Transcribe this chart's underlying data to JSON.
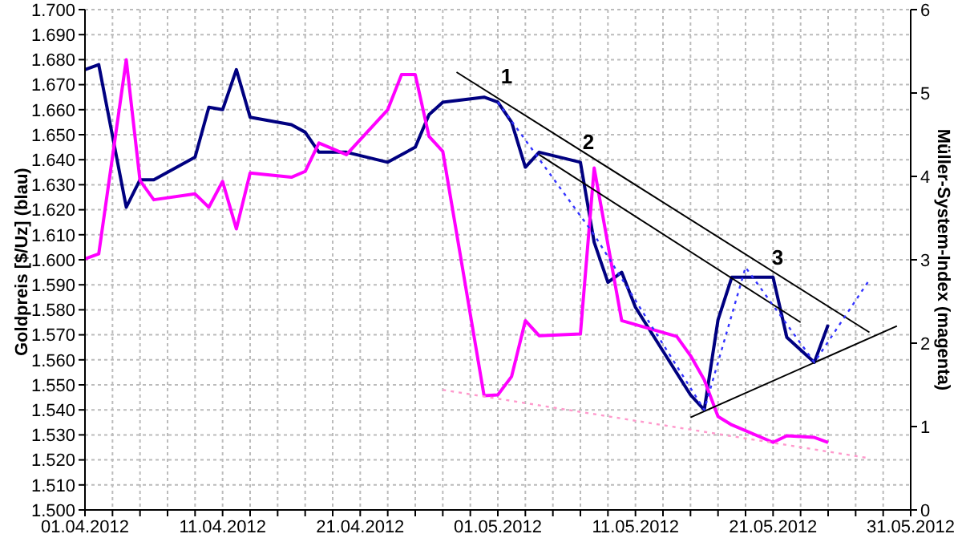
{
  "chart_data": {
    "type": "line",
    "ylabel": "Goldpreis [$/Uz] (blau)",
    "y2label": "Müller-System-Index (magenta)",
    "xlim": [
      "2012-04-01",
      "2012-05-31"
    ],
    "xticks": [
      {
        "value": "2012-04-01",
        "label": "01.04.2012"
      },
      {
        "value": "2012-04-03",
        "label": null
      },
      {
        "value": "2012-04-05",
        "label": null
      },
      {
        "value": "2012-04-07",
        "label": null
      },
      {
        "value": "2012-04-09",
        "label": null
      },
      {
        "value": "2012-04-11",
        "label": "11.04.2012"
      },
      {
        "value": "2012-04-13",
        "label": null
      },
      {
        "value": "2012-04-15",
        "label": null
      },
      {
        "value": "2012-04-17",
        "label": null
      },
      {
        "value": "2012-04-19",
        "label": null
      },
      {
        "value": "2012-04-21",
        "label": "21.04.2012"
      },
      {
        "value": "2012-04-23",
        "label": null
      },
      {
        "value": "2012-04-25",
        "label": null
      },
      {
        "value": "2012-04-27",
        "label": null
      },
      {
        "value": "2012-04-29",
        "label": null
      },
      {
        "value": "2012-05-01",
        "label": "01.05.2012"
      },
      {
        "value": "2012-05-03",
        "label": null
      },
      {
        "value": "2012-05-05",
        "label": null
      },
      {
        "value": "2012-05-07",
        "label": null
      },
      {
        "value": "2012-05-09",
        "label": null
      },
      {
        "value": "2012-05-11",
        "label": "11.05.2012"
      },
      {
        "value": "2012-05-13",
        "label": null
      },
      {
        "value": "2012-05-15",
        "label": null
      },
      {
        "value": "2012-05-17",
        "label": null
      },
      {
        "value": "2012-05-19",
        "label": null
      },
      {
        "value": "2012-05-21",
        "label": "21.05.2012"
      },
      {
        "value": "2012-05-23",
        "label": null
      },
      {
        "value": "2012-05-25",
        "label": null
      },
      {
        "value": "2012-05-27",
        "label": null
      },
      {
        "value": "2012-05-29",
        "label": null
      },
      {
        "value": "2012-05-31",
        "label": "31.05.2012"
      }
    ],
    "ylim": [
      1.5,
      1.7
    ],
    "yticks": [
      {
        "value": 1.5,
        "label": "1.500"
      },
      {
        "value": 1.51,
        "label": "1.510"
      },
      {
        "value": 1.52,
        "label": "1.520"
      },
      {
        "value": 1.53,
        "label": "1.530"
      },
      {
        "value": 1.54,
        "label": "1.540"
      },
      {
        "value": 1.55,
        "label": "1.550"
      },
      {
        "value": 1.56,
        "label": "1.560"
      },
      {
        "value": 1.57,
        "label": "1.570"
      },
      {
        "value": 1.58,
        "label": "1.580"
      },
      {
        "value": 1.59,
        "label": "1.590"
      },
      {
        "value": 1.6,
        "label": "1.600"
      },
      {
        "value": 1.61,
        "label": "1.610"
      },
      {
        "value": 1.62,
        "label": "1.620"
      },
      {
        "value": 1.63,
        "label": "1.630"
      },
      {
        "value": 1.64,
        "label": "1.640"
      },
      {
        "value": 1.65,
        "label": "1.650"
      },
      {
        "value": 1.66,
        "label": "1.660"
      },
      {
        "value": 1.67,
        "label": "1.670"
      },
      {
        "value": 1.68,
        "label": "1.680"
      },
      {
        "value": 1.69,
        "label": "1.690"
      },
      {
        "value": 1.7,
        "label": "1.700"
      }
    ],
    "y2lim": [
      0,
      6
    ],
    "y2ticks": [
      0,
      1,
      2,
      3,
      4,
      5,
      6
    ],
    "grid": true,
    "marker": "none",
    "series": [
      {
        "color": "#000080",
        "x": [
          "2012-04-01",
          "2012-04-02",
          "2012-04-04",
          "2012-04-05",
          "2012-04-06",
          "2012-04-09",
          "2012-04-10",
          "2012-04-11",
          "2012-04-12",
          "2012-04-13",
          "2012-04-16",
          "2012-04-17",
          "2012-04-18",
          "2012-04-19",
          "2012-04-20",
          "2012-04-23",
          "2012-04-25",
          "2012-04-26",
          "2012-04-27",
          "2012-04-30",
          "2012-05-01",
          "2012-05-02",
          "2012-05-03",
          "2012-05-04",
          "2012-05-07",
          "2012-05-08",
          "2012-05-09",
          "2012-05-10",
          "2012-05-11",
          "2012-05-15",
          "2012-05-16",
          "2012-05-17",
          "2012-05-18",
          "2012-05-21",
          "2012-05-22",
          "2012-05-24",
          "2012-05-25"
        ],
        "values": [
          1.676,
          1.678,
          1.621,
          1.632,
          1.632,
          1.641,
          1.661,
          1.66,
          1.676,
          1.657,
          1.654,
          1.651,
          1.643,
          1.643,
          1.643,
          1.639,
          1.645,
          1.658,
          1.663,
          1.665,
          1.663,
          1.655,
          1.637,
          1.643,
          1.639,
          1.607,
          1.591,
          1.595,
          1.581,
          1.546,
          1.54,
          1.576,
          1.593,
          1.593,
          1.569,
          1.559,
          1.574
        ]
      },
      {
        "color": "#ff00ff",
        "axis": "y2",
        "x": [
          "2012-04-01",
          "2012-04-02",
          "2012-04-04",
          "2012-04-05",
          "2012-04-06",
          "2012-04-09",
          "2012-04-10",
          "2012-04-11",
          "2012-04-12",
          "2012-04-13",
          "2012-04-16",
          "2012-04-17",
          "2012-04-18",
          "2012-04-20",
          "2012-04-23",
          "2012-04-24",
          "2012-04-25",
          "2012-04-26",
          "2012-04-27",
          "2012-04-30",
          "2012-05-01",
          "2012-05-02",
          "2012-05-03",
          "2012-05-04",
          "2012-05-07",
          "2012-05-08",
          "2012-05-10",
          "2012-05-14",
          "2012-05-15",
          "2012-05-16",
          "2012-05-17",
          "2012-05-18",
          "2012-05-21",
          "2012-05-22",
          "2012-05-24",
          "2012-05-25"
        ],
        "values": [
          3.01,
          3.07,
          5.4,
          3.95,
          3.72,
          3.79,
          3.63,
          3.94,
          3.37,
          4.04,
          3.99,
          4.06,
          4.4,
          4.26,
          4.8,
          5.22,
          5.22,
          4.48,
          4.3,
          1.37,
          1.38,
          1.6,
          2.27,
          2.09,
          2.11,
          4.1,
          2.27,
          2.08,
          1.85,
          1.56,
          1.12,
          1.02,
          0.81,
          0.89,
          0.87,
          0.81
        ]
      },
      {
        "color": "#000000",
        "x": [
          "2012-04-28",
          "2012-05-28"
        ],
        "values": [
          1.675,
          1.571
        ]
      },
      {
        "color": "#000000",
        "x": [
          "2012-05-04",
          "2012-05-23"
        ],
        "values": [
          1.642,
          1.575
        ]
      },
      {
        "color": "#000000",
        "x": [
          "2012-05-15",
          "2012-05-30"
        ],
        "values": [
          1.537,
          1.5735
        ]
      },
      {
        "color": "#3333ff",
        "line_style": "dotted",
        "x": [
          "2012-05-01",
          "2012-05-08",
          "2012-05-16",
          "2012-05-19",
          "2012-05-24",
          "2012-05-28"
        ],
        "values": [
          1.663,
          1.61,
          1.54,
          1.597,
          1.559,
          1.592
        ]
      },
      {
        "color": "#ff99cc",
        "line_style": "dotted",
        "axis": "y2",
        "x": [
          "2012-04-27",
          "2012-05-28"
        ],
        "values": [
          1.44,
          0.62
        ]
      }
    ],
    "annotations": [
      "1",
      "2",
      "3"
    ]
  }
}
